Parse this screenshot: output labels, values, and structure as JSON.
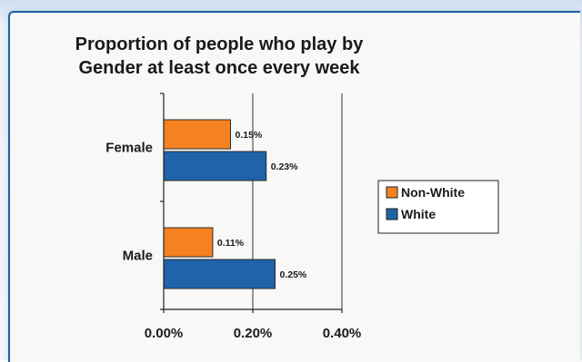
{
  "chart_data": {
    "type": "bar",
    "orientation": "horizontal",
    "title": [
      "Proportion of people who play by",
      "Gender at least once every week"
    ],
    "categories": [
      "Female",
      "Male"
    ],
    "series": [
      {
        "name": "Non-White",
        "values": [
          0.15,
          0.11
        ],
        "labels": [
          "0.15%",
          "0.11%"
        ],
        "color": "#f58220"
      },
      {
        "name": "White",
        "values": [
          0.23,
          0.25
        ],
        "labels": [
          "0.23%",
          "0.25%"
        ],
        "color": "#1f63a8"
      }
    ],
    "xlim": [
      0,
      0.4
    ],
    "xticks": [
      0,
      0.2,
      0.4
    ],
    "xtick_labels": [
      "0.00%",
      "0.20%",
      "0.40%"
    ],
    "unit": "%",
    "grid": "vertical at 0.20%",
    "legend_position": "right"
  }
}
